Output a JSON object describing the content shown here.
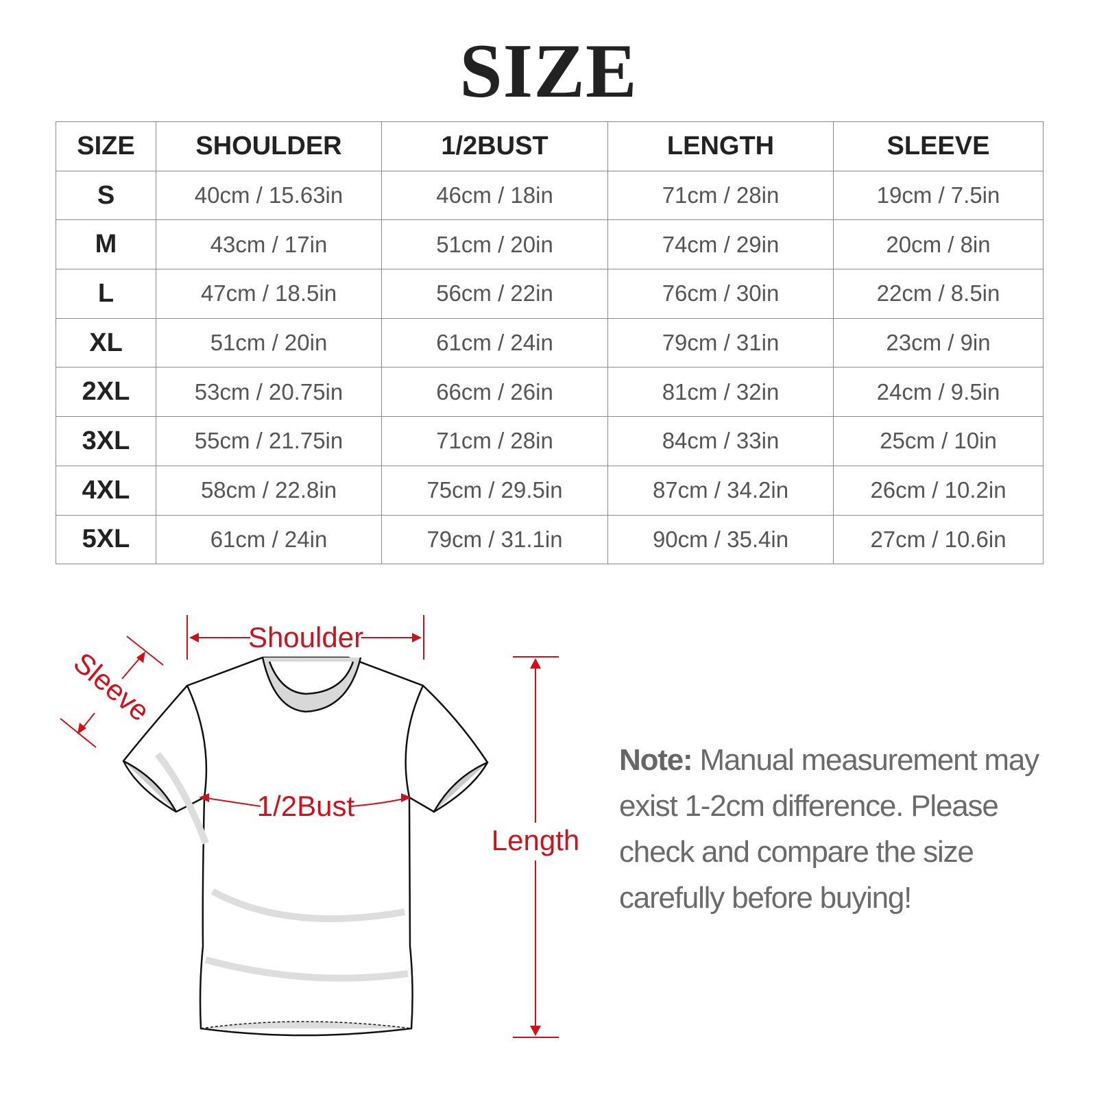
{
  "title": "SIZE",
  "table": {
    "headers": [
      "SIZE",
      "SHOULDER",
      "1/2BUST",
      "LENGTH",
      "SLEEVE"
    ],
    "rows": [
      [
        "S",
        "40cm / 15.63in",
        "46cm / 18in",
        "71cm / 28in",
        "19cm / 7.5in"
      ],
      [
        "M",
        "43cm / 17in",
        "51cm / 20in",
        "74cm / 29in",
        "20cm / 8in"
      ],
      [
        "L",
        "47cm / 18.5in",
        "56cm / 22in",
        "76cm / 30in",
        "22cm / 8.5in"
      ],
      [
        "XL",
        "51cm / 20in",
        "61cm / 24in",
        "79cm / 31in",
        "23cm / 9in"
      ],
      [
        "2XL",
        "53cm / 20.75in",
        "66cm / 26in",
        "81cm / 32in",
        "24cm / 9.5in"
      ],
      [
        "3XL",
        "55cm / 21.75in",
        "71cm / 28in",
        "84cm / 33in",
        "25cm / 10in"
      ],
      [
        "4XL",
        "58cm / 22.8in",
        "75cm / 29.5in",
        "87cm / 34.2in",
        "26cm / 10.2in"
      ],
      [
        "5XL",
        "61cm / 24in",
        "79cm / 31.1in",
        "90cm / 35.4in",
        "27cm / 10.6in"
      ]
    ]
  },
  "diagram": {
    "shoulder": "Shoulder",
    "sleeve": "Sleeve",
    "bust": "1/2Bust",
    "length": "Length",
    "accent_color": "#d0101a"
  },
  "note": {
    "label": "Note:",
    "text": " Manual measurement may exist 1-2cm difference. Please check and compare the size carefully before buying!"
  }
}
